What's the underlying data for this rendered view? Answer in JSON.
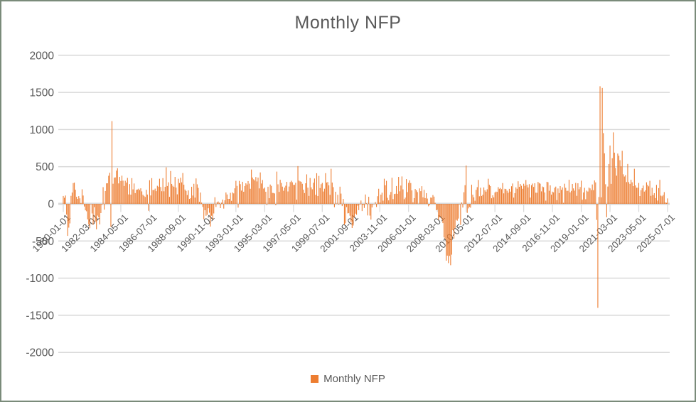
{
  "colors": {
    "bar": "#ED7D31",
    "grid": "#D9D9D9",
    "axis": "#D9D9D9",
    "tick": "#BFBFBF",
    "text": "#595959",
    "border": "#7a8b7a"
  },
  "legend": {
    "label": "Monthly NFP"
  },
  "chart_data": {
    "type": "bar",
    "title": "Monthly NFP",
    "series_name": "Monthly NFP",
    "xlabel": "",
    "ylabel": "",
    "ylim": [
      -2000,
      2000
    ],
    "grid": true,
    "legend_position": "bottom",
    "y_ticks": [
      2000,
      1500,
      1000,
      500,
      0,
      -500,
      -1000,
      -1500,
      -2000
    ],
    "x_start_month": "1980-01",
    "x_end_month": "2025-07",
    "x_tick_interval_months": 26,
    "x_tick_labels": [
      "1980-01-01",
      "1982-03-01",
      "1984-05-01",
      "1986-07-01",
      "1988-09-01",
      "1990-11-01",
      "1993-01-01",
      "1995-03-01",
      "1997-05-01",
      "1999-07-01",
      "2001-09-01",
      "2003-11-01",
      "2006-01-01",
      "2008-03-01",
      "2010-05-01",
      "2012-07-01",
      "2014-09-01",
      "2016-11-01",
      "2019-01-01",
      "2021-03-01",
      "2023-05-01",
      "2025-07-01"
    ],
    "values": [
      106,
      82,
      112,
      -145,
      -431,
      -320,
      -263,
      108,
      152,
      280,
      285,
      190,
      95,
      67,
      104,
      74,
      10,
      196,
      112,
      -36,
      -87,
      -100,
      -209,
      -278,
      -327,
      -6,
      -129,
      -281,
      -45,
      -243,
      -343,
      -158,
      -181,
      -277,
      -124,
      -14,
      225,
      -78,
      173,
      276,
      277,
      378,
      418,
      -308,
      1114,
      271,
      352,
      356,
      447,
      479,
      275,
      363,
      308,
      379,
      312,
      241,
      311,
      286,
      349,
      127,
      266,
      124,
      346,
      195,
      274,
      145,
      189,
      193,
      204,
      187,
      209,
      168,
      123,
      107,
      93,
      189,
      125,
      -93,
      318,
      113,
      346,
      186,
      186,
      205,
      171,
      243,
      231,
      338,
      227,
      170,
      346,
      169,
      229,
      492,
      240,
      290,
      94,
      442,
      268,
      244,
      229,
      363,
      219,
      128,
      338,
      280,
      351,
      289,
      415,
      258,
      192,
      174,
      119,
      181,
      66,
      76,
      230,
      112,
      270,
      84,
      342,
      263,
      215,
      27,
      152,
      17,
      -42,
      -208,
      -86,
      -160,
      -148,
      -59,
      -120,
      -306,
      -160,
      -211,
      -129,
      89,
      -42,
      21,
      32,
      15,
      -57,
      16,
      57,
      -64,
      48,
      153,
      126,
      67,
      67,
      148,
      41,
      153,
      141,
      209,
      310,
      242,
      -51,
      309,
      265,
      178,
      297,
      163,
      240,
      277,
      261,
      306,
      272,
      203,
      462,
      354,
      331,
      315,
      361,
      302,
      353,
      208,
      423,
      274,
      321,
      205,
      219,
      163,
      -16,
      230,
      76,
      260,
      242,
      147,
      146,
      140,
      -19,
      434,
      263,
      161,
      324,
      281,
      232,
      176,
      219,
      244,
      296,
      167,
      233,
      293,
      311,
      290,
      256,
      256,
      284,
      56,
      508,
      313,
      303,
      297,
      270,
      190,
      145,
      277,
      397,
      218,
      107,
      348,
      222,
      196,
      284,
      341,
      121,
      412,
      106,
      376,
      213,
      265,
      282,
      166,
      204,
      413,
      286,
      294,
      249,
      121,
      472,
      286,
      225,
      -46,
      163,
      3,
      122,
      -11,
      231,
      138,
      -30,
      66,
      -281,
      -262,
      -44,
      -128,
      -125,
      -160,
      -244,
      -325,
      -292,
      -178,
      -132,
      -147,
      -24,
      -85,
      -7,
      45,
      -97,
      -16,
      -55,
      126,
      8,
      -156,
      95,
      -158,
      -212,
      -49,
      -6,
      -2,
      25,
      -42,
      103,
      203,
      18,
      124,
      150,
      43,
      338,
      250,
      310,
      81,
      47,
      121,
      160,
      351,
      64,
      132,
      136,
      240,
      135,
      363,
      169,
      246,
      369,
      195,
      63,
      84,
      334,
      158,
      282,
      316,
      280,
      181,
      21,
      77,
      200,
      182,
      158,
      2,
      208,
      171,
      238,
      88,
      188,
      78,
      144,
      71,
      -33,
      -16,
      85,
      82,
      118,
      97,
      15,
      -86,
      -80,
      -214,
      -182,
      -172,
      -210,
      -259,
      -452,
      -474,
      -765,
      -697,
      -798,
      -701,
      -826,
      -684,
      -354,
      -467,
      -327,
      -216,
      -227,
      -198,
      -6,
      -283,
      18,
      -50,
      156,
      251,
      516,
      -122,
      -61,
      -42,
      -52,
      257,
      123,
      88,
      42,
      188,
      225,
      322,
      102,
      217,
      106,
      122,
      221,
      183,
      164,
      196,
      338,
      257,
      239,
      75,
      115,
      87,
      153,
      165,
      161,
      225,
      203,
      214,
      197,
      280,
      141,
      203,
      199,
      177,
      149,
      202,
      164,
      237,
      274,
      84,
      144,
      222,
      203,
      304,
      229,
      267,
      243,
      203,
      271,
      243,
      321,
      256,
      221,
      265,
      84,
      251,
      273,
      228,
      277,
      150,
      149,
      295,
      280,
      271,
      168,
      233,
      225,
      153,
      43,
      297,
      291,
      176,
      249,
      124,
      164,
      155,
      216,
      232,
      50,
      207,
      145,
      239,
      189,
      221,
      14,
      271,
      216,
      175,
      176,
      324,
      155,
      175,
      268,
      208,
      178,
      282,
      108,
      277,
      196,
      227,
      312,
      56,
      153,
      216,
      62,
      178,
      166,
      219,
      208,
      185,
      261,
      184,
      315,
      289,
      -216,
      -1400,
      92,
      1583,
      88,
      1560,
      952,
      680,
      264,
      -180,
      233,
      536,
      785,
      269,
      614,
      962,
      689,
      483,
      379,
      677,
      647,
      588,
      504,
      714,
      398,
      368,
      386,
      293,
      537,
      292,
      269,
      324,
      290,
      239,
      472,
      248,
      217,
      217,
      281,
      105,
      184,
      210,
      246,
      165,
      182,
      290,
      256,
      236,
      310,
      108,
      216,
      118,
      144,
      78,
      255,
      44,
      212,
      323,
      111,
      102,
      120,
      158,
      19,
      14,
      73
    ]
  }
}
